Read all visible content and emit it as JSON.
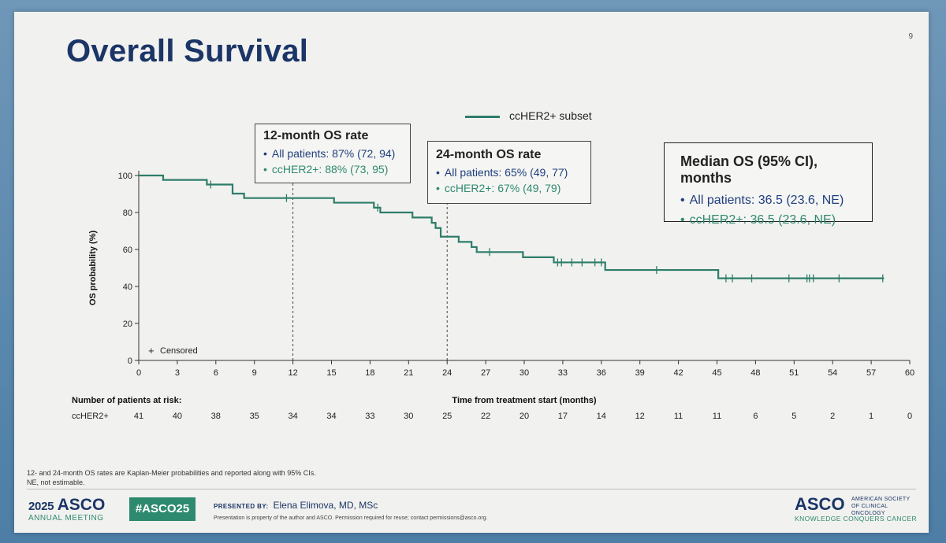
{
  "slide": {
    "title": "Overall Survival",
    "page_number": "9"
  },
  "legend": {
    "label": "ccHER2+ subset"
  },
  "box12": {
    "header": "12-month OS rate",
    "all": "All patients: 87% (72, 94)",
    "her2": "ccHER2+: 88% (73, 95)"
  },
  "box24": {
    "header": "24-month OS rate",
    "all": "All patients: 65% (49, 77)",
    "her2": "ccHER2+: 67% (49, 79)"
  },
  "median": {
    "header": "Median OS (95% CI), months",
    "all": "All patients: 36.5 (23.6, NE)",
    "her2": "ccHER2+: 36.5 (23.6, NE)"
  },
  "bullet": "•",
  "colors": {
    "navy": "#1b3567",
    "teal": "#2e7d6b",
    "blue_text": "#1f3f7d",
    "green_text": "#2e8a6f"
  },
  "chart_data": {
    "type": "line",
    "subtype": "kaplan-meier step",
    "xlabel": "Time from treatment start (months)",
    "ylabel": "OS probability (%)",
    "xlim": [
      0,
      60
    ],
    "ylim": [
      0,
      100
    ],
    "xticks": [
      0,
      3,
      6,
      9,
      12,
      15,
      18,
      21,
      24,
      27,
      30,
      33,
      36,
      39,
      42,
      45,
      48,
      51,
      54,
      57,
      60
    ],
    "yticks": [
      0,
      20,
      40,
      60,
      80,
      100
    ],
    "censored_label": "Censored",
    "censored_symbol": "+",
    "reference_lines": [
      12,
      24
    ],
    "series": [
      {
        "name": "ccHER2+ subset",
        "steps": [
          [
            0,
            100
          ],
          [
            1.9,
            97.6
          ],
          [
            5.3,
            95.1
          ],
          [
            7.3,
            90.2
          ],
          [
            8.2,
            87.8
          ],
          [
            15.2,
            85.3
          ],
          [
            18.3,
            82.6
          ],
          [
            18.8,
            80.0
          ],
          [
            21.3,
            77.3
          ],
          [
            22.8,
            74.4
          ],
          [
            23.1,
            71.6
          ],
          [
            23.5,
            66.9
          ],
          [
            24.9,
            64.1
          ],
          [
            25.9,
            61.3
          ],
          [
            26.3,
            58.6
          ],
          [
            29.9,
            55.8
          ],
          [
            32.3,
            53.0
          ],
          [
            36.3,
            48.9
          ],
          [
            45.1,
            44.4
          ],
          [
            58,
            44.4
          ]
        ],
        "censored": [
          [
            5.6,
            95.1
          ],
          [
            11.5,
            87.8
          ],
          [
            18.6,
            82.6
          ],
          [
            27.3,
            58.6
          ],
          [
            32.6,
            53.0
          ],
          [
            32.9,
            53.0
          ],
          [
            33.7,
            53.0
          ],
          [
            34.5,
            53.0
          ],
          [
            35.5,
            53.0
          ],
          [
            36.0,
            53.0
          ],
          [
            40.3,
            48.9
          ],
          [
            45.7,
            44.4
          ],
          [
            46.2,
            44.4
          ],
          [
            47.7,
            44.4
          ],
          [
            50.6,
            44.4
          ],
          [
            52.0,
            44.4
          ],
          [
            52.2,
            44.4
          ],
          [
            52.5,
            44.4
          ],
          [
            54.5,
            44.4
          ],
          [
            57.9,
            44.4
          ]
        ]
      }
    ],
    "at_risk": {
      "title": "Number of patients at risk:",
      "group_label": "ccHER2+",
      "times": [
        0,
        3,
        6,
        9,
        12,
        15,
        18,
        21,
        24,
        27,
        30,
        33,
        36,
        39,
        42,
        45,
        48,
        51,
        54,
        57,
        60
      ],
      "values": [
        41,
        40,
        38,
        35,
        34,
        34,
        33,
        30,
        25,
        22,
        20,
        17,
        14,
        12,
        11,
        11,
        6,
        5,
        2,
        1,
        0
      ]
    }
  },
  "footnote": {
    "line1": "12- and 24-month OS rates are Kaplan-Meier probabilities and reported along with 95% CIs.",
    "line2": "NE, not estimable."
  },
  "footer": {
    "meeting_year": "2025",
    "meeting_org": "ASCO",
    "meeting_sub": "ANNUAL MEETING",
    "hashtag": "#ASCO25",
    "presented_by_label": "PRESENTED BY:",
    "presenter": "Elena Elimova, MD, MSc",
    "property_note": "Presentation is property of the author and ASCO. Permission required for reuse; contact permissions@asco.org.",
    "org_logo": "ASCO",
    "org_name": "AMERICAN SOCIETY OF CLINICAL ONCOLOGY",
    "tagline": "KNOWLEDGE CONQUERS CANCER"
  }
}
